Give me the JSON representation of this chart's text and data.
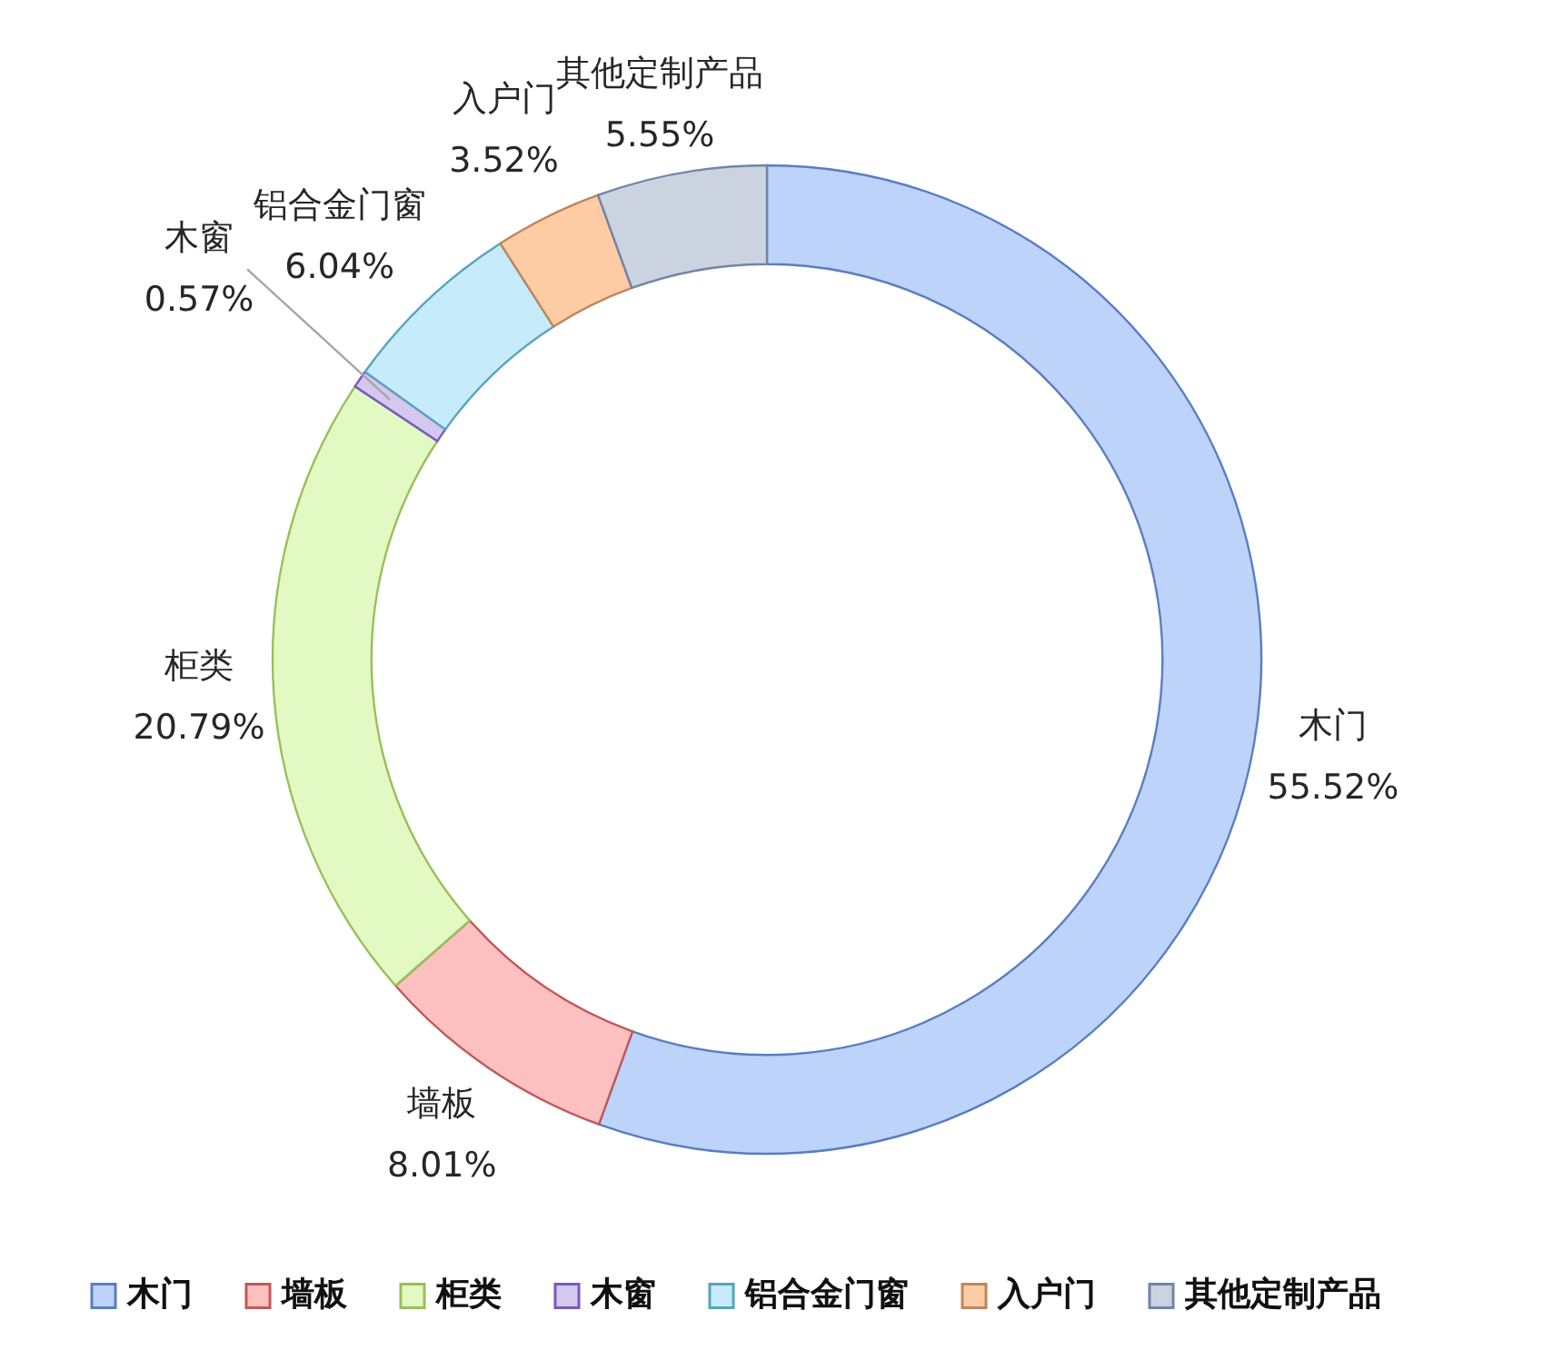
{
  "chart_data": {
    "type": "donut",
    "categories": [
      "木门",
      "墙板",
      "柜类",
      "木窗",
      "铝合金门窗",
      "入户门",
      "其他定制产品"
    ],
    "values": [
      55.52,
      8.01,
      20.79,
      0.57,
      6.04,
      3.52,
      5.55
    ],
    "value_labels": [
      "55.52%",
      "8.01%",
      "20.79%",
      "0.57%",
      "6.04%",
      "3.52%",
      "5.55%"
    ],
    "colors": [
      "#bdd3fa",
      "#fcc0c0",
      "#e3f9c3",
      "#d4c8ee",
      "#c6ecfb",
      "#fdcba4",
      "#cbd3e0"
    ],
    "legend": "bottom"
  }
}
